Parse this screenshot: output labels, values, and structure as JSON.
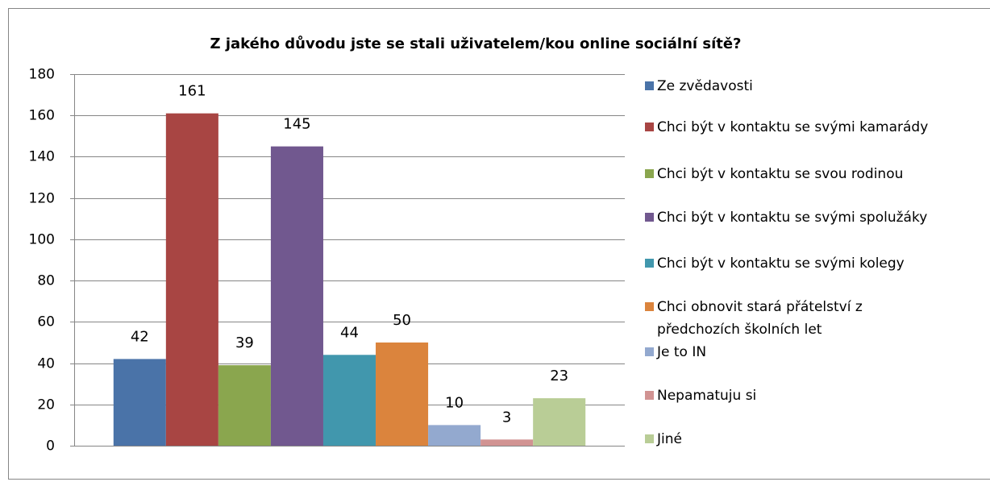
{
  "chart_data": {
    "type": "bar",
    "title": "Z jakého důvodu jste se stali uživatelem/kou online sociální sítě?",
    "series": [
      {
        "name": "Ze zvědavosti",
        "color": "#4A73A8",
        "values": [
          42
        ]
      },
      {
        "name": "Chci být v kontaktu se svými kamarády",
        "color": "#A84543",
        "values": [
          161
        ]
      },
      {
        "name": "Chci být v kontaktu se svou rodinou",
        "color": "#8AA64E",
        "values": [
          39
        ]
      },
      {
        "name": "Chci být v kontaktu se svými spolužáky",
        "color": "#71588F",
        "values": [
          145
        ]
      },
      {
        "name": "Chci být v kontaktu se svými kolegy",
        "color": "#4197AD",
        "values": [
          44
        ]
      },
      {
        "name": "Chci obnovit stará přátelství z předchozích školních let",
        "color": "#DB843D",
        "values": [
          50
        ]
      },
      {
        "name": "Je to IN",
        "color": "#93A9CF",
        "values": [
          10
        ]
      },
      {
        "name": "Nepamatuju si",
        "color": "#D19392",
        "values": [
          3
        ]
      },
      {
        "name": "Jiné",
        "color": "#B9CD96",
        "values": [
          23
        ]
      }
    ],
    "ylim": [
      0,
      180
    ],
    "yticks": [
      0,
      20,
      40,
      60,
      80,
      100,
      120,
      140,
      160,
      180
    ],
    "grid": true,
    "legend": "right"
  }
}
